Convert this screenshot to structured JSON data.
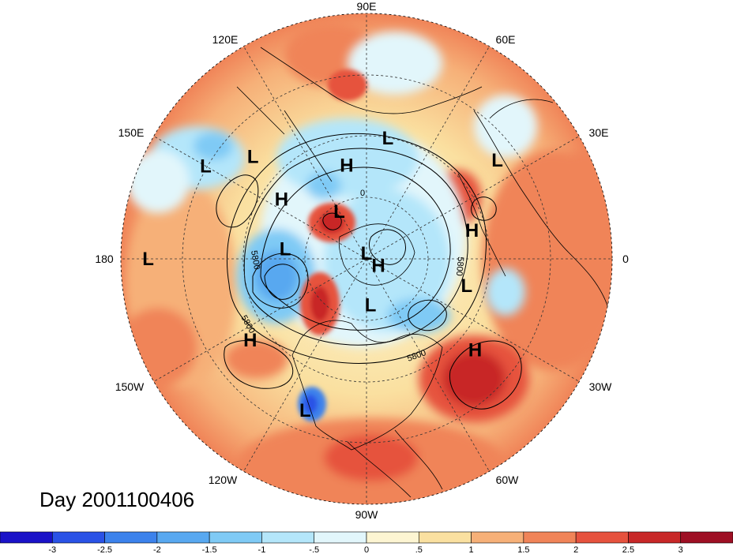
{
  "title": "Day 2001100406",
  "longitude_labels": [
    "90E",
    "60E",
    "30E",
    "0",
    "30W",
    "60W",
    "90W",
    "120W",
    "150W",
    "180",
    "150E",
    "120E"
  ],
  "centers": [
    {
      "type": "L",
      "lon": 150,
      "lat": 22
    },
    {
      "type": "L",
      "lon": 138,
      "lat": 34
    },
    {
      "type": "H",
      "lon": 102,
      "lat": 55
    },
    {
      "type": "L",
      "lon": 80,
      "lat": 45
    },
    {
      "type": "L",
      "lon": 37,
      "lat": 30
    },
    {
      "type": "H",
      "lon": 15,
      "lat": 50
    },
    {
      "type": "H",
      "lon": 145,
      "lat": 52
    },
    {
      "type": "L",
      "lon": 120,
      "lat": 70
    },
    {
      "type": "L",
      "lon": 173,
      "lat": 60
    },
    {
      "type": "L",
      "lon": 180,
      "lat": 10
    },
    {
      "type": "L",
      "lon": 90,
      "lat": 88
    },
    {
      "type": "H",
      "lon": -30,
      "lat": 85
    },
    {
      "type": "L",
      "lon": -85,
      "lat": 73
    },
    {
      "type": "L",
      "lon": -15,
      "lat": 52
    },
    {
      "type": "H",
      "lon": -40,
      "lat": 38
    },
    {
      "type": "H",
      "lon": -145,
      "lat": 38
    },
    {
      "type": "L",
      "lon": -112,
      "lat": 30
    }
  ],
  "contour_labels": [
    "5800",
    "5800",
    "5800",
    "5800",
    "0"
  ],
  "colorbar": {
    "ticks": [
      "-3",
      "-2.5",
      "-2",
      "-1.5",
      "-1",
      "-.5",
      "0",
      ".5",
      "1",
      "1.5",
      "2",
      "2.5",
      "3"
    ],
    "colors": [
      "#1a12c8",
      "#2a52e6",
      "#3c82ec",
      "#58a8f0",
      "#7fcaf5",
      "#b4e6fa",
      "#e2f6fb",
      "#fdf5d2",
      "#fae0a0",
      "#f6b078",
      "#f08458",
      "#e6523e",
      "#c82828",
      "#9e0f24"
    ]
  }
}
